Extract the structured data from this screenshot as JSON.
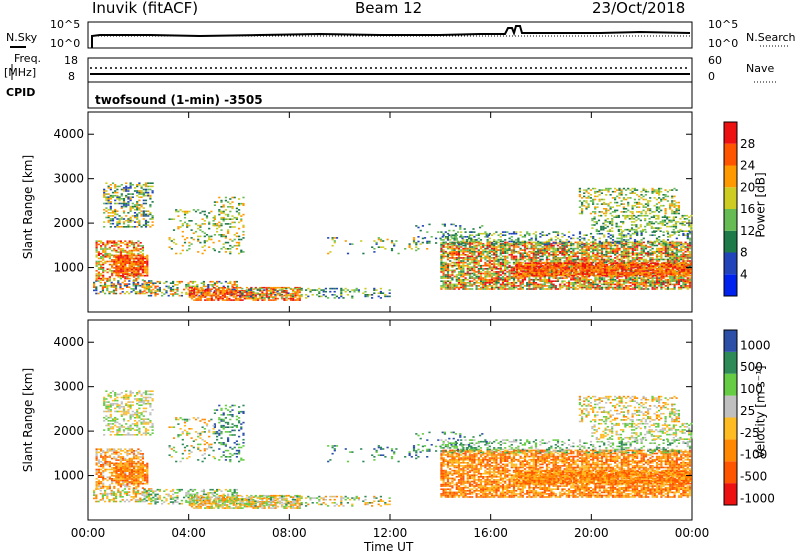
{
  "header": {
    "station": "Inuvik (fitACF)",
    "beam": "Beam 12",
    "date": "23/Oct/2018"
  },
  "top_panels": {
    "nsky_label": "N.Sky",
    "nsky_ticks": [
      "10^5",
      "10^0"
    ],
    "nsearch_label": "N.Search",
    "nsearch_ticks": [
      "10^5",
      "10^0"
    ],
    "freq_label": "Freq.",
    "freq_unit": "[MHz]",
    "freq_ticks": [
      "18",
      "8"
    ],
    "nave_label": "Nave",
    "nave_ticks": [
      "60",
      "0"
    ],
    "cpid_label": "CPID",
    "cpid_value": "twofsound (1-min) -3505"
  },
  "colors": {
    "power": [
      "#0022ee",
      "#2244bb",
      "#1f7a4a",
      "#66bb55",
      "#cccc22",
      "#ff9900",
      "#ff5500",
      "#ee1111"
    ],
    "velocity": [
      "#ee1111",
      "#ff5500",
      "#ff8800",
      "#ffbb22",
      "#c0c0c0",
      "#66cc44",
      "#2e8b57",
      "#2c4fa8"
    ]
  },
  "chart_data": [
    {
      "type": "heatmap",
      "panel": "power",
      "ylabel": "Slant Range [km]",
      "yticks": [
        "1000",
        "2000",
        "3000",
        "4000"
      ],
      "xticks": [
        "00:00",
        "04:00",
        "08:00",
        "12:00",
        "16:00",
        "20:00",
        "00:00"
      ],
      "colorbar_label": "Power [dB]",
      "colorbar_ticks": [
        "4",
        "8",
        "12",
        "16",
        "20",
        "24",
        "28"
      ]
    },
    {
      "type": "heatmap",
      "panel": "velocity",
      "ylabel": "Slant Range [km]",
      "yticks": [
        "1000",
        "2000",
        "3000",
        "4000"
      ],
      "xticks": [
        "00:00",
        "04:00",
        "08:00",
        "12:00",
        "16:00",
        "20:00",
        "00:00"
      ],
      "xlabel": "Time UT",
      "colorbar_label": "Velocity [m s⁻¹]",
      "colorbar_ticks": [
        "1000",
        "500",
        "100",
        "25",
        "-25",
        "-100",
        "-500",
        "-1000"
      ]
    }
  ]
}
